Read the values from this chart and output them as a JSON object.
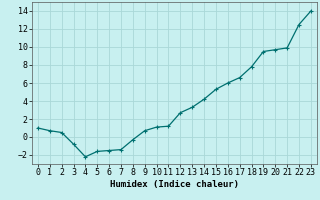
{
  "x": [
    0,
    1,
    2,
    3,
    4,
    5,
    6,
    7,
    8,
    9,
    10,
    11,
    12,
    13,
    14,
    15,
    16,
    17,
    18,
    19,
    20,
    21,
    22,
    23
  ],
  "y": [
    1.0,
    0.7,
    0.5,
    -0.8,
    -2.2,
    -1.6,
    -1.5,
    -1.4,
    -0.3,
    0.7,
    1.1,
    1.2,
    2.7,
    3.3,
    4.2,
    5.3,
    6.0,
    6.6,
    7.8,
    9.5,
    9.7,
    9.9,
    12.5,
    14.0
  ],
  "line_color": "#007070",
  "marker": "+",
  "marker_size": 3,
  "marker_lw": 0.8,
  "line_width": 0.9,
  "bg_color": "#c8f0f0",
  "grid_color": "#aad8d8",
  "xlabel": "Humidex (Indice chaleur)",
  "xlim": [
    -0.5,
    23.5
  ],
  "ylim": [
    -3,
    15
  ],
  "yticks": [
    -2,
    0,
    2,
    4,
    6,
    8,
    10,
    12,
    14
  ],
  "xticks": [
    0,
    1,
    2,
    3,
    4,
    5,
    6,
    7,
    8,
    9,
    10,
    11,
    12,
    13,
    14,
    15,
    16,
    17,
    18,
    19,
    20,
    21,
    22,
    23
  ],
  "xlabel_fontsize": 6.5,
  "tick_fontsize": 6.0
}
